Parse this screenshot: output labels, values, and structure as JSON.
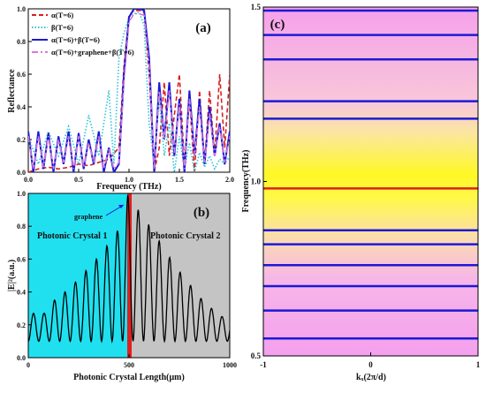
{
  "figure": {
    "panels": [
      {
        "id": "a",
        "label": "(a)"
      },
      {
        "id": "b",
        "label": "(b)"
      },
      {
        "id": "c",
        "label": "(c)"
      }
    ]
  },
  "chart_data": [
    {
      "panel": "(a)",
      "type": "line",
      "xlabel": "Frequency (THz)",
      "ylabel": "Reflectance",
      "xlim": [
        0,
        2.0
      ],
      "ylim": [
        0,
        1.0
      ],
      "x_ticks": [
        "0.0",
        "0.5",
        "1.0",
        "1.5",
        "2.0"
      ],
      "y_ticks": [
        "0.0",
        "0.2",
        "0.4",
        "0.6",
        "0.8",
        "1.0"
      ],
      "legend_position": "top-left",
      "series": [
        {
          "name": "α(T=6)",
          "color": "#d62020",
          "style": "dashed",
          "x": [
            0.0,
            0.1,
            0.2,
            0.3,
            0.4,
            0.5,
            0.6,
            0.7,
            0.8,
            0.9,
            0.95,
            1.0,
            1.05,
            1.1,
            1.15,
            1.2,
            1.25,
            1.3,
            1.35,
            1.4,
            1.45,
            1.5,
            1.55,
            1.6,
            1.65,
            1.7,
            1.75,
            1.8,
            1.85,
            1.9,
            1.95,
            2.0
          ],
          "y": [
            0.0,
            0.02,
            0.03,
            0.02,
            0.03,
            0.05,
            0.04,
            0.06,
            0.08,
            0.15,
            0.65,
            0.96,
            0.99,
            0.99,
            0.98,
            0.6,
            0.0,
            0.15,
            0.55,
            0.1,
            0.35,
            0.6,
            0.05,
            0.45,
            0.0,
            0.5,
            0.05,
            0.5,
            0.1,
            0.6,
            0.15,
            0.6
          ]
        },
        {
          "name": "β(T=6)",
          "color": "#2ec4d6",
          "style": "dotted",
          "x": [
            0.0,
            0.1,
            0.2,
            0.3,
            0.4,
            0.5,
            0.6,
            0.7,
            0.8,
            0.85,
            0.9,
            0.95,
            1.0,
            1.05,
            1.1,
            1.15,
            1.2,
            1.25,
            1.3,
            1.35,
            1.4,
            1.45,
            1.5,
            1.55,
            1.6,
            1.65,
            1.7,
            1.75,
            1.8,
            1.85,
            1.9,
            1.95,
            2.0
          ],
          "y": [
            0.22,
            0.05,
            0.25,
            0.1,
            0.28,
            0.05,
            0.35,
            0.1,
            0.5,
            0.05,
            0.7,
            0.85,
            0.95,
            0.97,
            0.98,
            0.9,
            0.3,
            0.05,
            0.45,
            0.1,
            0.3,
            0.0,
            0.22,
            0.02,
            0.18,
            0.0,
            0.12,
            0.03,
            0.1,
            0.02,
            0.08,
            0.05,
            0.1
          ]
        },
        {
          "name": "α(T=6)+β(T=6)",
          "color": "#1a1ad6",
          "style": "solid",
          "x": [
            0.0,
            0.05,
            0.1,
            0.15,
            0.2,
            0.25,
            0.3,
            0.35,
            0.4,
            0.45,
            0.5,
            0.55,
            0.6,
            0.65,
            0.7,
            0.75,
            0.8,
            0.85,
            0.9,
            0.95,
            1.0,
            1.05,
            1.1,
            1.15,
            1.2,
            1.25,
            1.3,
            1.35,
            1.4,
            1.45,
            1.5,
            1.55,
            1.6,
            1.65,
            1.7,
            1.75,
            1.8,
            1.85,
            1.9,
            1.95,
            2.0
          ],
          "y": [
            0.25,
            0.0,
            0.25,
            0.02,
            0.24,
            0.0,
            0.22,
            0.05,
            0.25,
            0.0,
            0.24,
            0.02,
            0.2,
            0.05,
            0.25,
            0.0,
            0.15,
            0.0,
            0.05,
            0.6,
            0.95,
            1.0,
            1.0,
            0.99,
            0.7,
            0.0,
            0.55,
            0.2,
            0.55,
            0.1,
            0.45,
            0.0,
            0.5,
            0.1,
            0.45,
            0.05,
            0.4,
            0.1,
            0.3,
            0.05,
            0.25
          ]
        },
        {
          "name": "α(T=6)+graphene+β(T=6)",
          "color": "#d77ad6",
          "style": "dashdot",
          "x": [
            0.0,
            0.05,
            0.1,
            0.15,
            0.2,
            0.25,
            0.3,
            0.35,
            0.4,
            0.45,
            0.5,
            0.55,
            0.6,
            0.65,
            0.7,
            0.75,
            0.8,
            0.85,
            0.9,
            0.95,
            1.0,
            1.05,
            1.1,
            1.15,
            1.2,
            1.25,
            1.3,
            1.35,
            1.4,
            1.45,
            1.5,
            1.55,
            1.6,
            1.65,
            1.7,
            1.75,
            1.8,
            1.85,
            1.9,
            1.95,
            2.0
          ],
          "y": [
            0.22,
            0.02,
            0.22,
            0.03,
            0.22,
            0.02,
            0.2,
            0.06,
            0.22,
            0.02,
            0.22,
            0.03,
            0.18,
            0.06,
            0.22,
            0.02,
            0.14,
            0.02,
            0.06,
            0.55,
            0.92,
            0.97,
            0.97,
            0.96,
            0.65,
            0.02,
            0.5,
            0.2,
            0.5,
            0.12,
            0.42,
            0.02,
            0.45,
            0.1,
            0.4,
            0.06,
            0.36,
            0.1,
            0.28,
            0.06,
            0.22
          ]
        }
      ]
    },
    {
      "panel": "(b)",
      "type": "line",
      "xlabel": "Photonic Crystal Length(μm)",
      "ylabel": "|E|²(a.u.)",
      "xlim": [
        0,
        1000
      ],
      "ylim": [
        0,
        1.0
      ],
      "x_ticks": [
        "0",
        "500",
        "1000"
      ],
      "y_ticks": [
        "0.0",
        "0.2",
        "0.4",
        "0.6",
        "0.8",
        "1.0"
      ],
      "region_labels": [
        "Photonic Crystal 1",
        "Photonic Crystal 2"
      ],
      "annotation": "graphene",
      "interface_x": 500,
      "series": [
        {
          "name": "field",
          "color": "#000000",
          "style": "solid",
          "period_um": 52,
          "peak_x": [
            78,
            130,
            182,
            234,
            286,
            338,
            390,
            442,
            494,
            546,
            598,
            650,
            702,
            754,
            806,
            858,
            910,
            962
          ],
          "peak_y": [
            0.27,
            0.35,
            0.4,
            0.46,
            0.53,
            0.6,
            0.68,
            0.77,
            0.99,
            0.9,
            0.81,
            0.71,
            0.61,
            0.52,
            0.44,
            0.36,
            0.3,
            0.25
          ]
        }
      ]
    },
    {
      "panel": "(c)",
      "type": "line",
      "xlabel": "kₓ(2π/d)",
      "ylabel": "Frequency(THz)",
      "xlim": [
        -1,
        1
      ],
      "ylim": [
        0.5,
        1.5
      ],
      "x_ticks": [
        "-1",
        "0",
        "1"
      ],
      "y_ticks": [
        "0.5",
        "1.0",
        "1.5"
      ],
      "band_lines": [
        0.55,
        0.63,
        0.7,
        0.76,
        0.82,
        0.86,
        1.18,
        1.23,
        1.35,
        1.42,
        1.49
      ],
      "band_color": "#1a1ad6",
      "highlight_line": 0.98,
      "highlight_color": "#e02020"
    }
  ]
}
